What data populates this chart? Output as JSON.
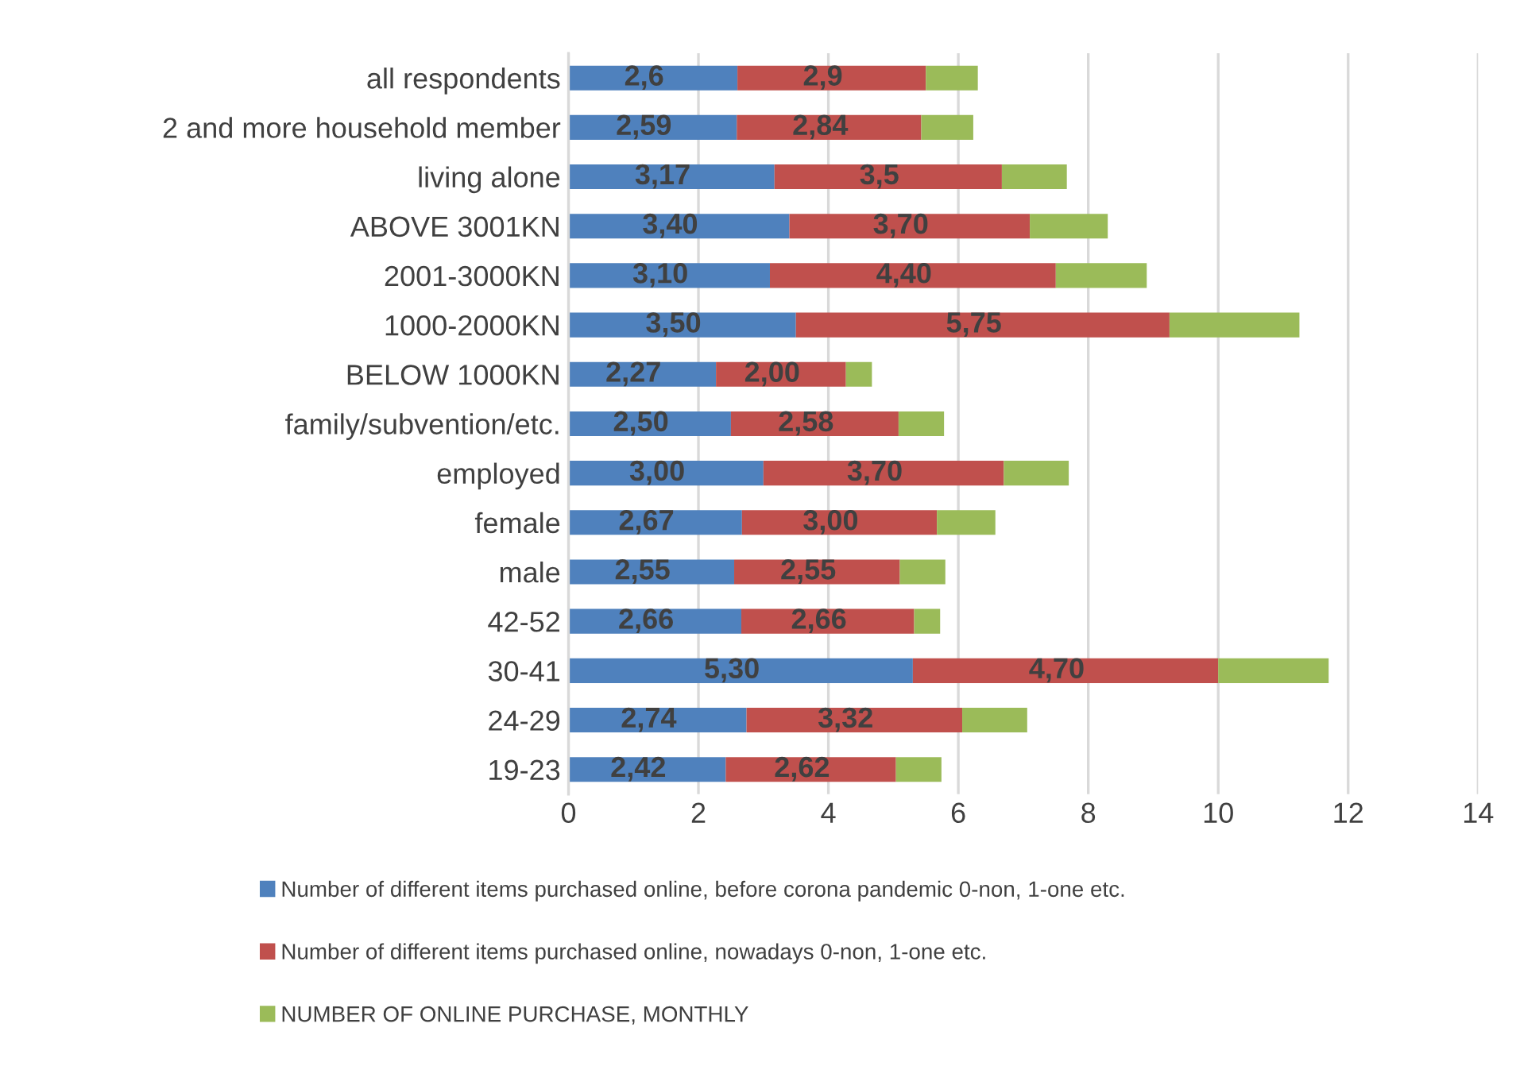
{
  "chart_data": {
    "type": "bar",
    "orientation": "horizontal",
    "stacked": true,
    "categories": [
      "all respondents",
      "2 and more household member",
      "living alone",
      "ABOVE 3001KN",
      "2001-3000KN",
      "1000-2000KN",
      "BELOW 1000KN",
      "family/subvention/etc.",
      "employed",
      "female",
      "male",
      "42-52",
      "30-41",
      "24-29",
      "19-23"
    ],
    "series": [
      {
        "name": "Number of different items purchased online, before corona pandemic 0-non, 1-one etc.",
        "color": "#4f81bd",
        "values": [
          2.6,
          2.59,
          3.17,
          3.4,
          3.1,
          3.5,
          2.27,
          2.5,
          3.0,
          2.67,
          2.55,
          2.66,
          5.3,
          2.74,
          2.42
        ],
        "value_labels": [
          "2,6",
          "2,59",
          "3,17",
          "3,40",
          "3,10",
          "3,50",
          "2,27",
          "2,50",
          "3,00",
          "2,67",
          "2,55",
          "2,66",
          "5,30",
          "2,74",
          "2,42"
        ]
      },
      {
        "name": "Number of different items purchased online, nowadays 0-non, 1-one etc.",
        "color": "#c0504d",
        "values": [
          2.9,
          2.84,
          3.5,
          3.7,
          4.4,
          5.75,
          2.0,
          2.58,
          3.7,
          3.0,
          2.55,
          2.66,
          4.7,
          3.32,
          2.62
        ],
        "value_labels": [
          "2,9",
          "2,84",
          "3,5",
          "3,70",
          "4,40",
          "5,75",
          "2,00",
          "2,58",
          "3,70",
          "3,00",
          "2,55",
          "2,66",
          "4,70",
          "3,32",
          "2,62"
        ]
      },
      {
        "name": "NUMBER OF ONLINE PURCHASE, MONTHLY",
        "color": "#9bbb59",
        "values": [
          0.8,
          0.8,
          1.0,
          1.2,
          1.4,
          2.0,
          0.4,
          0.7,
          1.0,
          0.9,
          0.7,
          0.4,
          1.7,
          1.0,
          0.7
        ]
      }
    ],
    "xlim": [
      0,
      14
    ],
    "xticks": [
      0,
      2,
      4,
      6,
      8,
      10,
      12,
      14
    ],
    "grid": "x",
    "legend": "bottom"
  }
}
